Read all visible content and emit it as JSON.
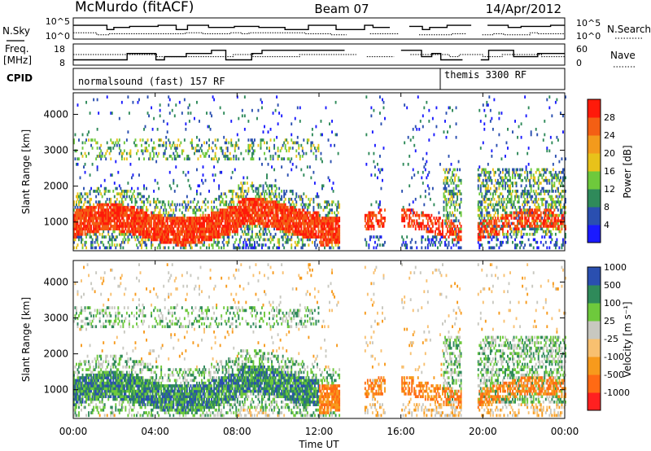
{
  "header": {
    "station": "McMurdo (fitACF)",
    "beam": "Beam 07",
    "date": "14/Apr/2012"
  },
  "side_labels": {
    "nsky": "N.Sky",
    "freq_line1": "Freq.",
    "freq_line2": "[MHz]",
    "cpid": "CPID",
    "nsearch": "N.Search",
    "nave": "Nave"
  },
  "cpid_segments": [
    {
      "label": "normalsound (fast) 157 RF",
      "start_hour": 0
    },
    {
      "label": "themis 3300 RF",
      "start_hour": 18
    }
  ],
  "colors": {
    "power": [
      "#1a1aff",
      "#2a4fb0",
      "#2f8a5a",
      "#6ec93c",
      "#e8c21a",
      "#f39a1c",
      "#f45f14",
      "#ff1a0a"
    ],
    "velocity": [
      "#ff2020",
      "#ff6a14",
      "#f79a1c",
      "#f8c070",
      "#c8c8c0",
      "#6ec93c",
      "#2f8a5a",
      "#2a4fb0"
    ]
  },
  "chart_data": [
    {
      "type": "line",
      "panel": "noise",
      "left_ticks": [
        "10^5",
        "10^0"
      ],
      "right_ticks": [
        "10^5",
        "10^0"
      ]
    },
    {
      "type": "line",
      "panel": "frequency",
      "left_ticks": [
        "18",
        "8"
      ],
      "right_ticks": [
        "60",
        "0"
      ]
    },
    {
      "type": "heatmap",
      "panel": "power",
      "ylabel": "Slant Range [km]",
      "yticks": [
        1000,
        2000,
        3000,
        4000
      ],
      "ylim": [
        200,
        4600
      ],
      "colorbar_label": "Power [dB]",
      "colorbar_ticks": [
        "4",
        "8",
        "12",
        "16",
        "20",
        "24",
        "28"
      ],
      "colorbar_range": [
        0,
        32
      ]
    },
    {
      "type": "heatmap",
      "panel": "velocity",
      "ylabel": "Slant Range [km]",
      "yticks": [
        1000,
        2000,
        3000,
        4000
      ],
      "ylim": [
        200,
        4600
      ],
      "colorbar_label": "Velocity [m s⁻¹]",
      "colorbar_ticks": [
        "-1000",
        "-500",
        "-100",
        "-25",
        "25",
        "100",
        "500",
        "1000"
      ]
    }
  ],
  "x_axis": {
    "label": "Time UT",
    "ticks": [
      "00:00",
      "04:00",
      "08:00",
      "12:00",
      "16:00",
      "20:00",
      "00:00"
    ],
    "tick_hours": [
      0,
      4,
      8,
      12,
      16,
      20,
      24
    ]
  },
  "gaps_hours": [
    [
      13.0,
      14.2
    ],
    [
      15.2,
      16.0
    ],
    [
      18.9,
      19.7
    ]
  ]
}
